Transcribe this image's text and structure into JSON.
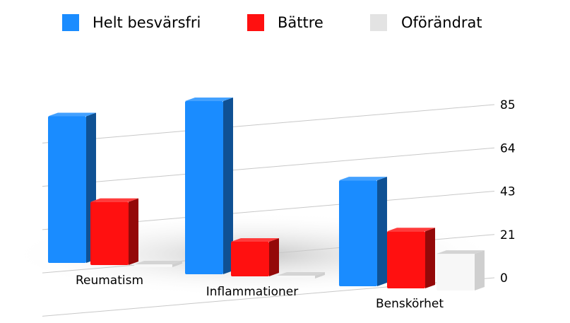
{
  "chart_data": {
    "type": "bar",
    "categories": [
      "Reumatism",
      "Inflammationer",
      "Benskörhet"
    ],
    "series": [
      {
        "name": "Helt besvärsfri",
        "color": "#1a8cff",
        "values": [
          72,
          85,
          52
        ]
      },
      {
        "name": "Bättre",
        "color": "#ff1010",
        "values": [
          31,
          17,
          28
        ]
      },
      {
        "name": "Oförändrat",
        "color": "#e3e3e3",
        "values": [
          0,
          0,
          18
        ]
      }
    ],
    "y_ticks": [
      "0",
      "21",
      "43",
      "64",
      "85"
    ],
    "ylim": [
      0,
      85
    ],
    "grid": true,
    "legend": "top",
    "y_axis_side": "right",
    "perspective": "3d"
  }
}
